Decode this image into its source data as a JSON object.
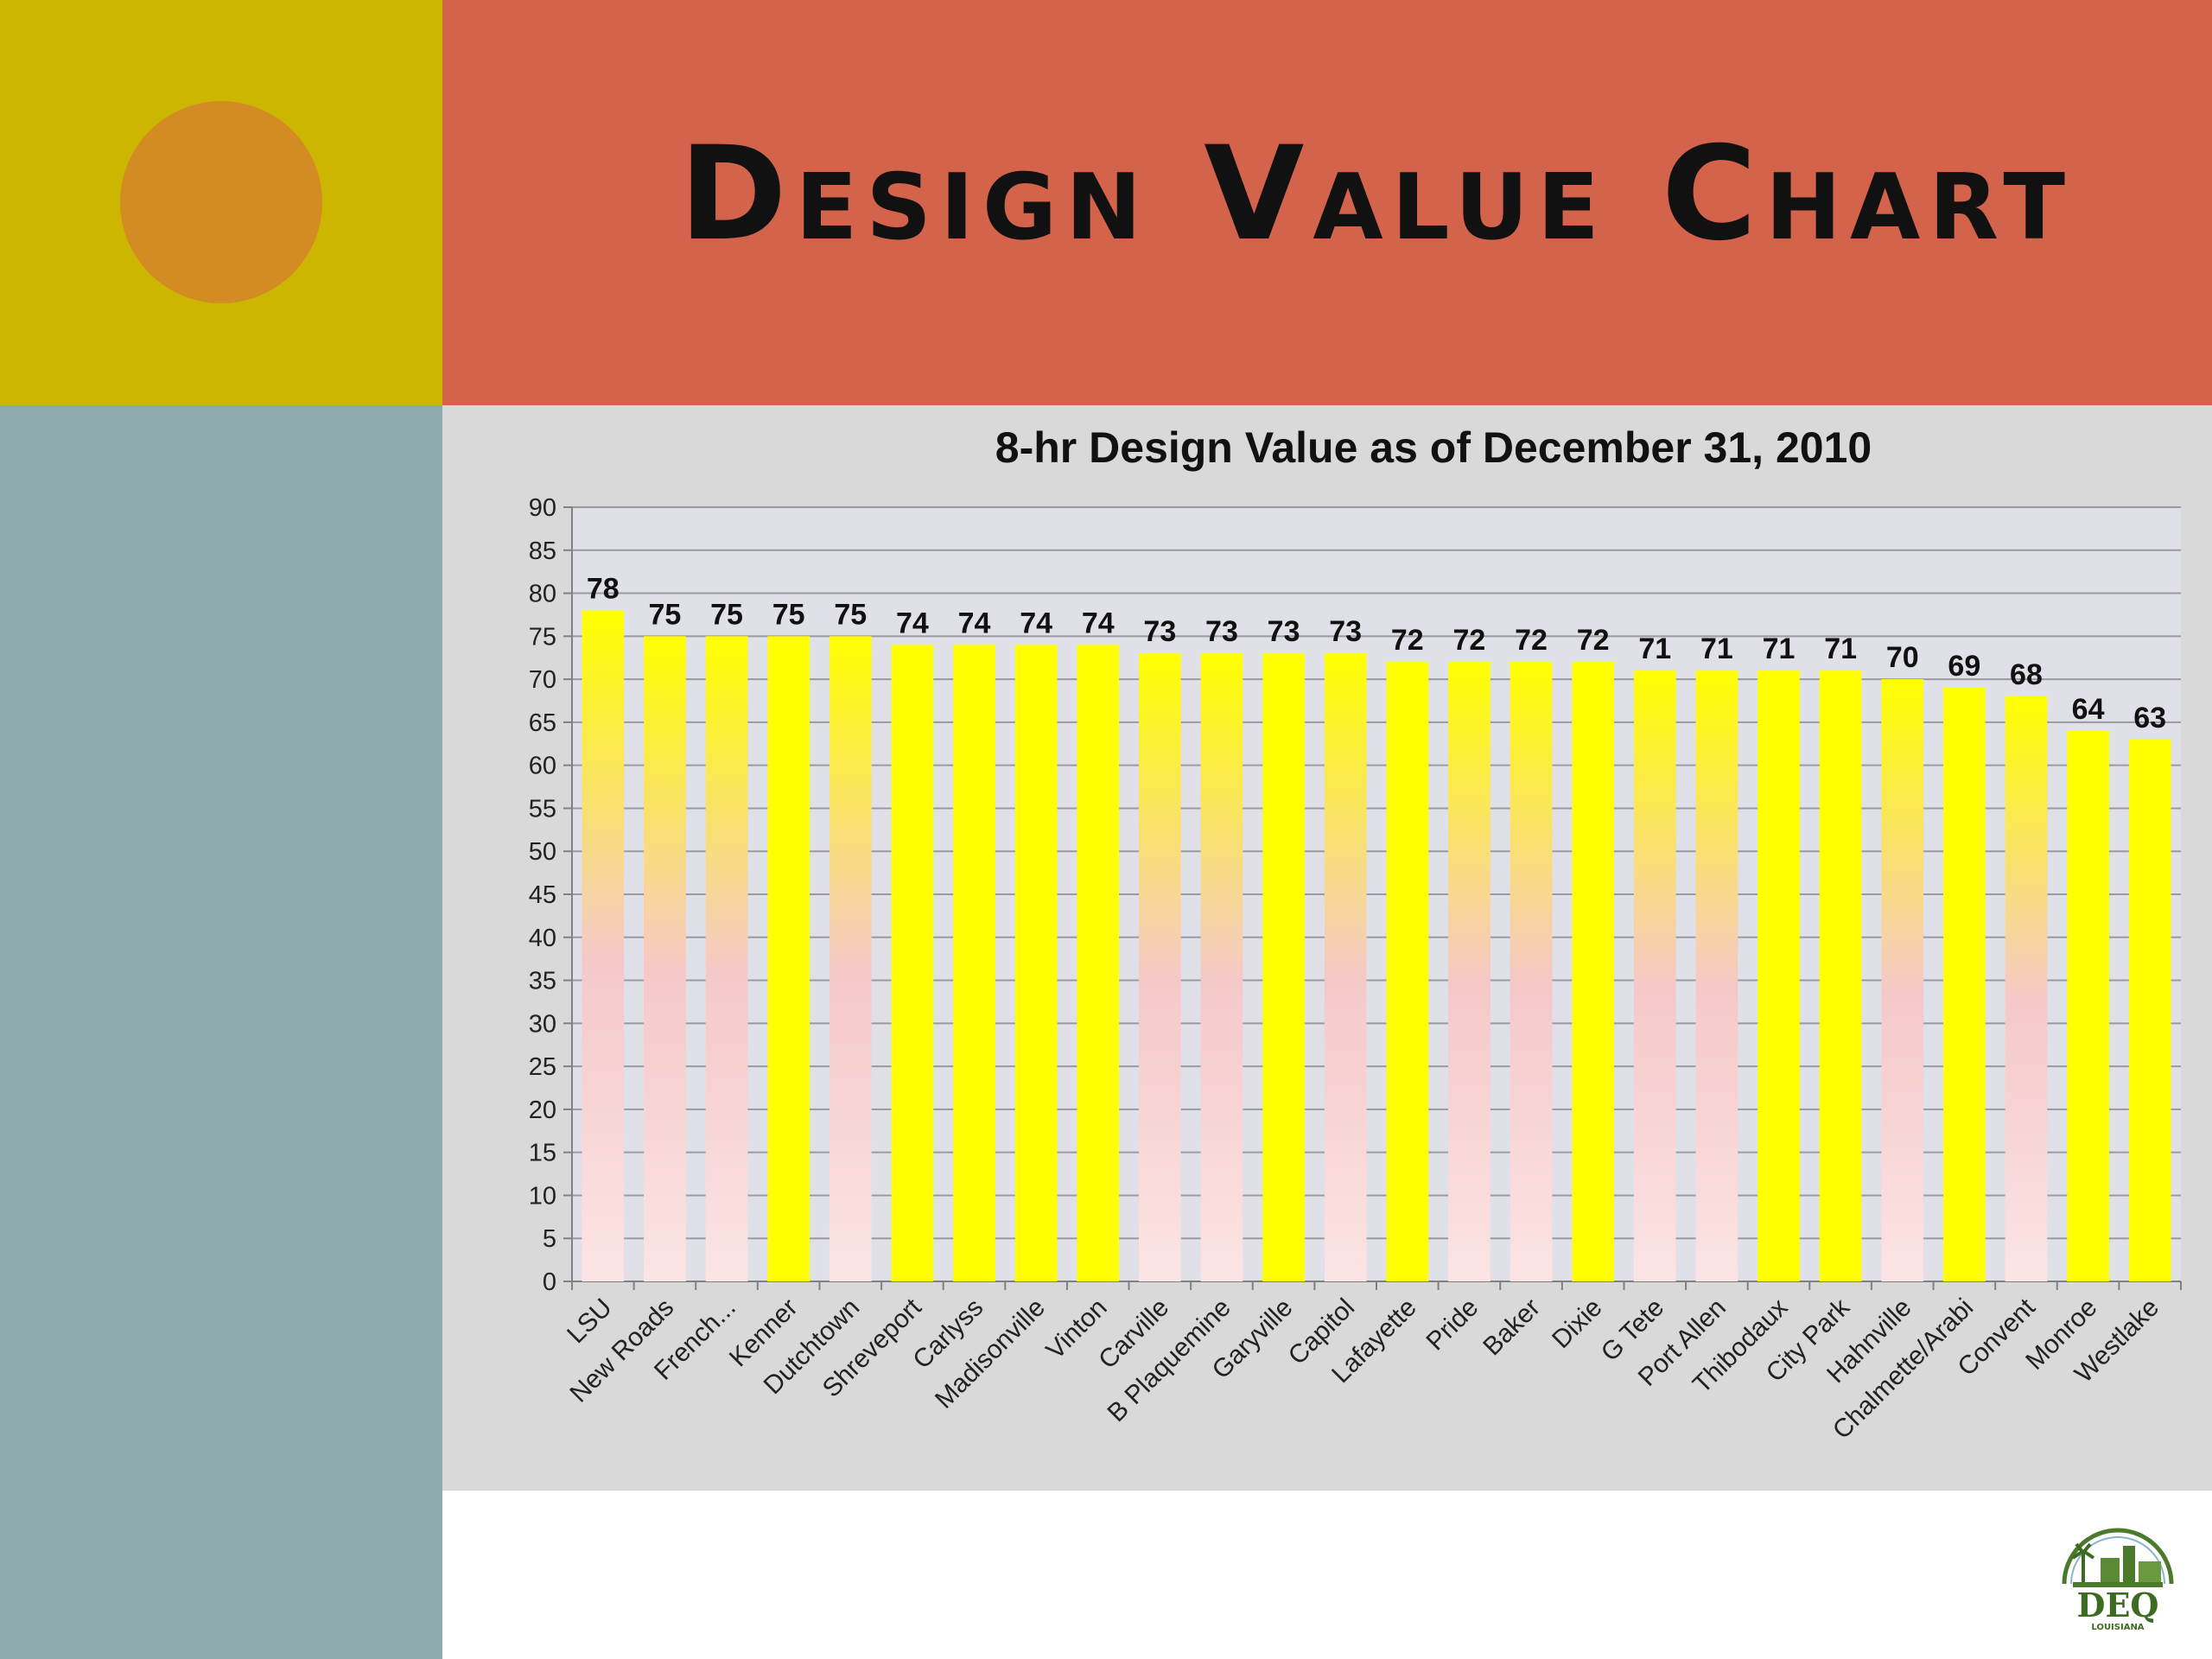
{
  "slide": {
    "title": "Design Value Chart"
  },
  "colors": {
    "top_left_block": "#cdb600",
    "circle": "#d38c24",
    "title_band": "#d4634b",
    "left_band": "#8eaaac",
    "chart_background": "#d9d9d9",
    "plot_background": "#e0e0e8",
    "bar_solid": "#ffff00",
    "bar_gradient_top": "#ffff00",
    "bar_gradient_mid": "#f5c8c8",
    "bar_gradient_bottom": "#fce4e4"
  },
  "logo": {
    "text": "DEQ",
    "subtext": "LOUISIANA",
    "icon": "deq-louisiana-logo-icon"
  },
  "chart_data": {
    "type": "bar",
    "title": "8-hr Design Value as of December 31, 2010",
    "xlabel": "",
    "ylabel": "",
    "ylim": [
      0,
      90
    ],
    "ytick_step": 5,
    "grid": true,
    "legend": "none",
    "categories": [
      "LSU",
      "New Roads",
      "French...",
      "Kenner",
      "Dutchtown",
      "Shreveport",
      "Carlyss",
      "Madisonville",
      "Vinton",
      "Carville",
      "B Plaquemine",
      "Garyville",
      "Capitol",
      "Lafayette",
      "Pride",
      "Baker",
      "Dixie",
      "G Tete",
      "Port Allen",
      "Thibodaux",
      "City Park",
      "Hahnville",
      "Chalmette/Arabi",
      "Convent",
      "Monroe",
      "Westlake"
    ],
    "values": [
      78,
      75,
      75,
      75,
      75,
      74,
      74,
      74,
      74,
      73,
      73,
      73,
      73,
      72,
      72,
      72,
      72,
      71,
      71,
      71,
      71,
      70,
      69,
      68,
      64,
      63
    ],
    "bar_style": [
      "gradient",
      "gradient",
      "gradient",
      "solid",
      "gradient",
      "solid",
      "solid",
      "solid",
      "solid",
      "gradient",
      "gradient",
      "solid",
      "gradient",
      "solid",
      "gradient",
      "gradient",
      "solid",
      "gradient",
      "gradient",
      "solid",
      "solid",
      "gradient",
      "solid",
      "gradient",
      "solid",
      "solid"
    ]
  }
}
